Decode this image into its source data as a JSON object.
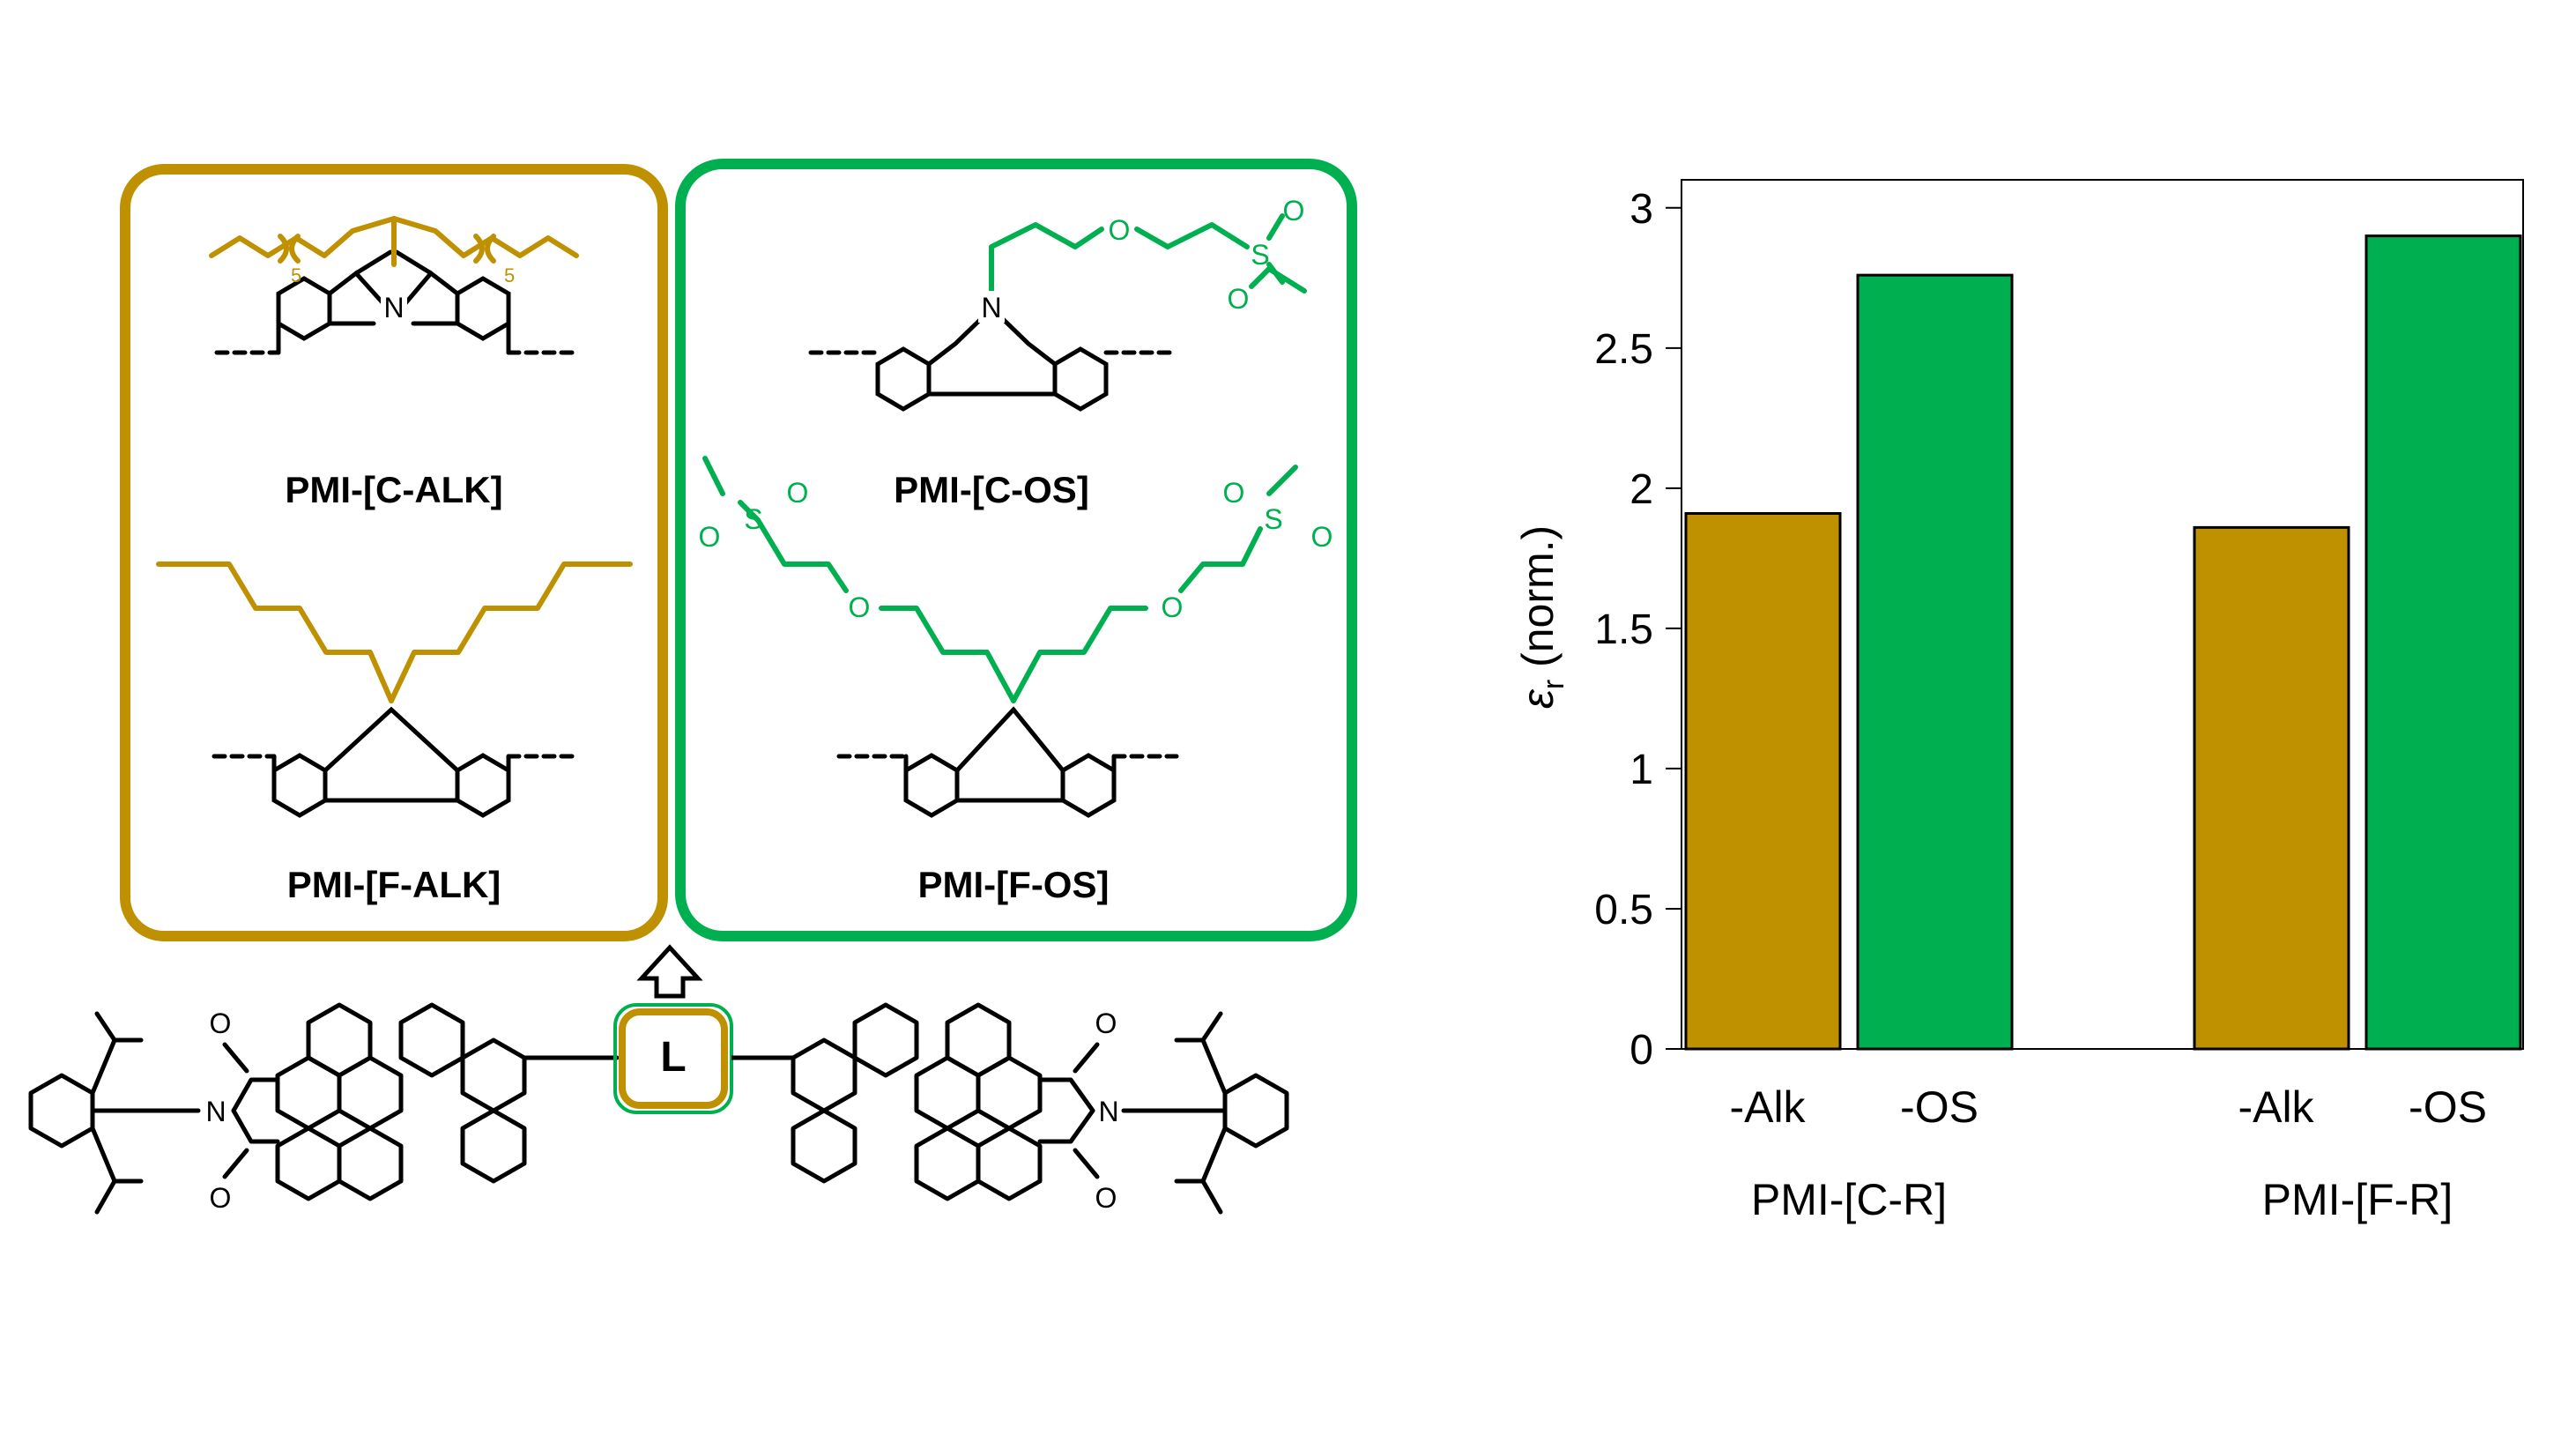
{
  "scheme": {
    "label_c_alk": "PMI-[C-ALK]",
    "label_c_os": "PMI-[C-OS]",
    "label_f_alk": "PMI-[F-ALK]",
    "label_f_os": "PMI-[F-OS]",
    "linker": "L",
    "nitrogen": "N",
    "oxygen": "O",
    "sulfur": "S",
    "subscript_5": "5",
    "colors": {
      "alkyl": "#bf9000",
      "oligo_sulfone": "#00b050",
      "black": "#000000"
    }
  },
  "chart_data": {
    "type": "bar",
    "title": "",
    "ylabel_symbol": "ε",
    "ylabel_sub": "r",
    "ylabel_rest": " (norm.)",
    "ylim": [
      0,
      3.1
    ],
    "yticks": [
      "0",
      "0.5",
      "1",
      "1.5",
      "2",
      "2.5",
      "3"
    ],
    "ytick_values": [
      0,
      0.5,
      1,
      1.5,
      2,
      2.5,
      3
    ],
    "groups": [
      "PMI-[C-R]",
      "PMI-[F-R]"
    ],
    "categories": [
      "-Alk",
      "-OS",
      "-Alk",
      "-OS"
    ],
    "values": [
      1.91,
      2.76,
      1.86,
      2.9
    ],
    "bar_colors": [
      "#bf9000",
      "#00b050",
      "#bf9000",
      "#00b050"
    ],
    "grid": false,
    "legend": "none"
  }
}
